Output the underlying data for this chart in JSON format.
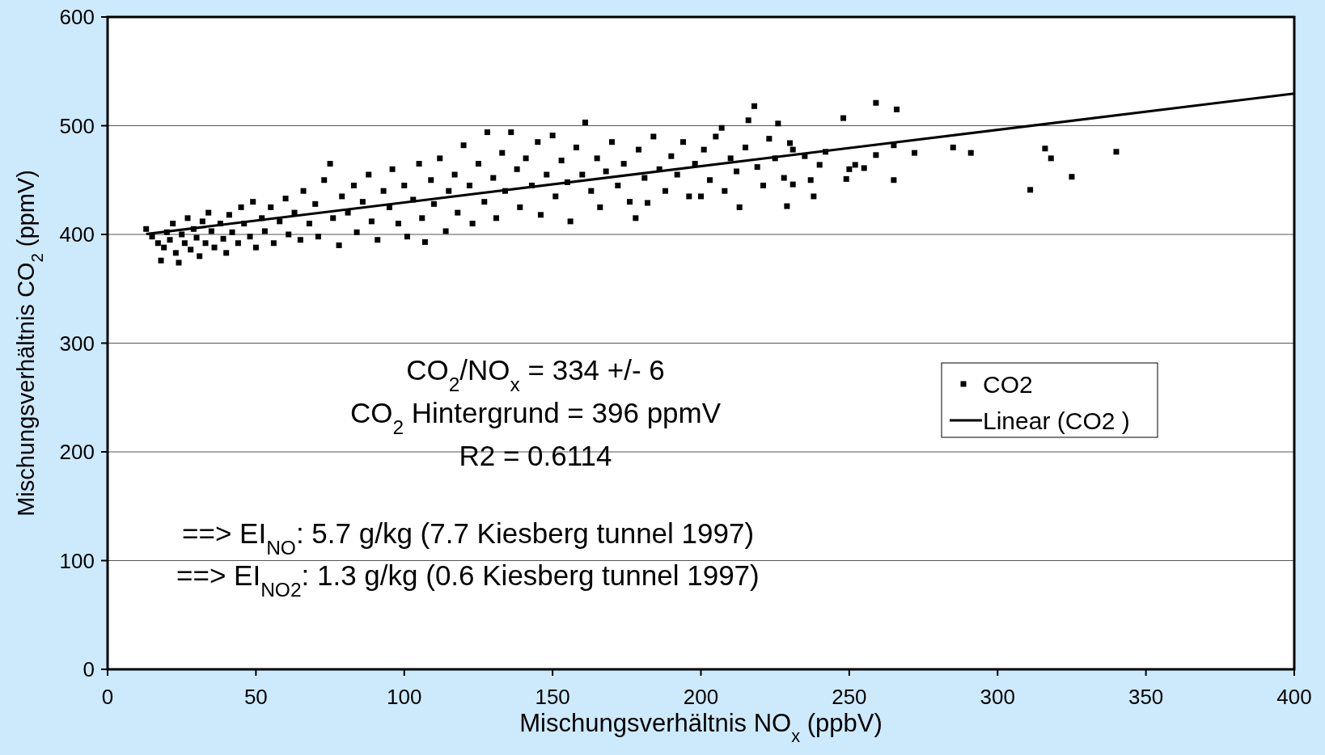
{
  "chart_data": {
    "type": "scatter",
    "xlabel": "Mischungsverhältnis NO$_{x}$ (ppbV)",
    "ylabel": "Mischungsverhältnis CO$_{2}$ (ppmV)",
    "xlim": [
      0,
      400
    ],
    "ylim": [
      0,
      600
    ],
    "xticks": [
      0,
      50,
      100,
      150,
      200,
      250,
      300,
      350,
      400
    ],
    "yticks": [
      0,
      100,
      200,
      300,
      400,
      500,
      600
    ],
    "grid": "y",
    "legend": "right",
    "marker": "square",
    "series": [
      {
        "name": "CO2",
        "color": "#000000",
        "x": [
          13,
          15,
          17,
          18,
          19,
          20,
          21,
          22,
          23,
          24,
          25,
          26,
          27,
          28,
          29,
          30,
          31,
          32,
          33,
          34,
          35,
          36,
          38,
          39,
          40,
          41,
          42,
          44,
          45,
          46,
          48,
          49,
          50,
          52,
          53,
          55,
          56,
          58,
          60,
          61,
          63,
          65,
          66,
          68,
          70,
          71,
          73,
          75,
          76,
          78,
          79,
          81,
          83,
          84,
          86,
          88,
          89,
          91,
          93,
          95,
          96,
          98,
          100,
          101,
          103,
          105,
          106,
          107,
          109,
          110,
          112,
          114,
          115,
          117,
          118,
          120,
          122,
          123,
          125,
          127,
          128,
          130,
          131,
          133,
          134,
          136,
          138,
          139,
          141,
          143,
          145,
          146,
          148,
          150,
          151,
          153,
          155,
          156,
          158,
          160,
          161,
          163,
          165,
          166,
          168,
          170,
          172,
          174,
          176,
          178,
          179,
          181,
          182,
          184,
          186,
          188,
          190,
          192,
          194,
          196,
          198,
          200,
          201,
          203,
          205,
          207,
          208,
          210,
          212,
          213,
          215,
          216,
          218,
          219,
          221,
          223,
          225,
          226,
          228,
          229,
          230,
          231,
          231,
          235,
          237,
          238,
          240,
          242,
          248,
          249,
          250,
          252,
          255,
          259,
          259,
          265,
          265,
          266,
          272,
          285,
          291,
          311,
          316,
          318,
          325,
          340
        ],
        "values": [
          405,
          398,
          392,
          376,
          388,
          402,
          395,
          410,
          383,
          374,
          400,
          392,
          415,
          386,
          405,
          397,
          380,
          412,
          392,
          420,
          403,
          388,
          410,
          396,
          383,
          418,
          402,
          392,
          425,
          410,
          398,
          430,
          388,
          415,
          403,
          425,
          392,
          412,
          433,
          400,
          420,
          395,
          440,
          410,
          428,
          398,
          450,
          465,
          415,
          390,
          435,
          420,
          445,
          402,
          430,
          455,
          412,
          395,
          440,
          425,
          460,
          410,
          445,
          398,
          432,
          465,
          415,
          393,
          450,
          428,
          470,
          403,
          440,
          455,
          420,
          482,
          445,
          410,
          465,
          430,
          494,
          452,
          415,
          475,
          440,
          494,
          460,
          425,
          470,
          445,
          485,
          418,
          455,
          491,
          435,
          468,
          448,
          412,
          480,
          455,
          503,
          440,
          470,
          425,
          458,
          485,
          445,
          465,
          430,
          415,
          478,
          452,
          429,
          490,
          460,
          440,
          472,
          455,
          485,
          435,
          465,
          435,
          478,
          450,
          490,
          498,
          440,
          470,
          458,
          425,
          480,
          505,
          518,
          462,
          445,
          488,
          470,
          502,
          452,
          426,
          484,
          446,
          478,
          472,
          450,
          435,
          464,
          476,
          507,
          451,
          460,
          464,
          461,
          473,
          521,
          482,
          450,
          515,
          475,
          480,
          475,
          441,
          479,
          470,
          453,
          476
        ]
      },
      {
        "name": "Linear (CO2 )",
        "type": "line",
        "color": "#000000",
        "line_style": "solid",
        "marker": "none",
        "x": [
          13,
          400
        ],
        "values": [
          400.3,
          529.6
        ]
      }
    ],
    "annotations": [
      "CO$_{2}$/NO$_{x}$ = 334 +/- 6",
      "CO$_{2}$ Hintergrund = 396 ppmV",
      "R2 = 0.6114",
      "==> EI$_{NO}$: 5.7 g/kg (7.7 Kiesberg tunnel 1997)",
      "==> EI$_{NO2}$: 1.3 g/kg (0.6 Kiesberg tunnel 1997)"
    ]
  }
}
